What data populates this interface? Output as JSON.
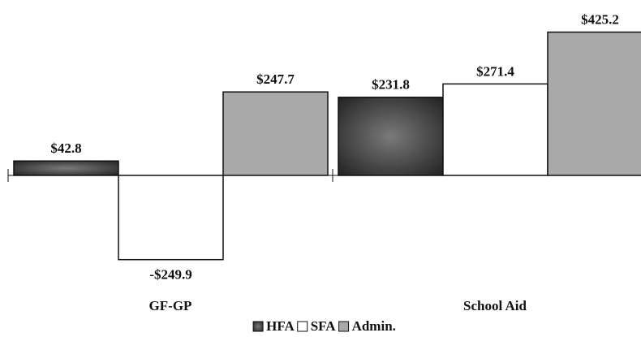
{
  "chart_data": {
    "type": "bar",
    "categories": [
      "GF-GP",
      "School Aid"
    ],
    "series": [
      {
        "name": "HFA",
        "color": "#4a4a4a",
        "values": [
          42.8,
          231.8
        ],
        "value_labels": [
          "$42.8",
          "$231.8"
        ]
      },
      {
        "name": "SFA",
        "color": "#ffffff",
        "values": [
          -249.9,
          271.4
        ],
        "value_labels": [
          "-$249.9",
          "$271.4"
        ]
      },
      {
        "name": "Admin.",
        "color": "#a9a9a9",
        "values": [
          247.7,
          425.2
        ],
        "value_labels": [
          "$247.7",
          "$425.2"
        ]
      }
    ],
    "ylim": [
      -300,
      500
    ]
  }
}
